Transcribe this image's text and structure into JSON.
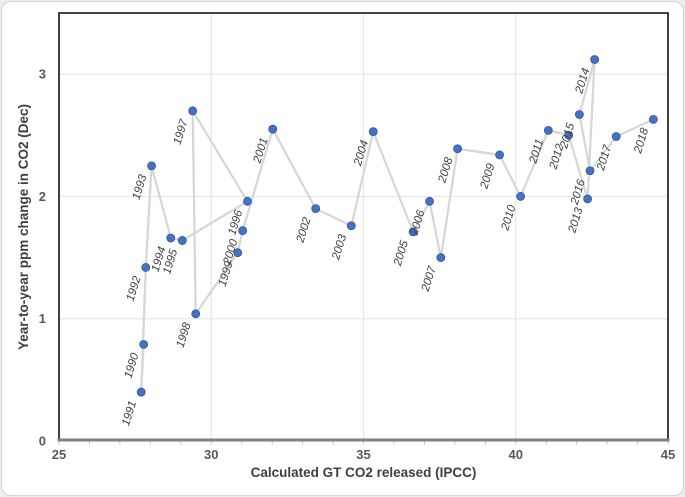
{
  "figure": {
    "page_background": "#eeeeee",
    "background": "#ffffff",
    "border_color": "#d4d4d4"
  },
  "chart_data": {
    "type": "scatter",
    "title": "",
    "xlabel": "Calculated GT CO2 released (IPCC)",
    "ylabel": "Year-to-year ppm change in CO2 (Dec)",
    "xlim": [
      25,
      45
    ],
    "ylim": [
      0,
      3.5
    ],
    "x_ticks": [
      25,
      30,
      35,
      40,
      45
    ],
    "y_ticks": [
      0,
      1,
      2,
      3
    ],
    "x_minor_tick_step": 1,
    "grid": true,
    "legend_position": "none",
    "connected_in_year_order": true,
    "marker_color": "#4472C4",
    "marker_edge_color": "#2F5597",
    "line_color": "#D6D6D6",
    "grid_color": "#E7E7E7",
    "axis_line_color": "#808080",
    "frame_color": "#2b2b2b",
    "tick_mark_color": "#BFBFBF",
    "tick_label_color": "#595959",
    "axis_title_color": "#3F3F3F",
    "point_label_color": "#404040",
    "points": [
      {
        "label": "1990",
        "x": 27.78,
        "y": 0.79
      },
      {
        "label": "1991",
        "x": 27.7,
        "y": 0.4
      },
      {
        "label": "1992",
        "x": 27.85,
        "y": 1.42
      },
      {
        "label": "1993",
        "x": 28.04,
        "y": 2.25
      },
      {
        "label": "1994",
        "x": 28.67,
        "y": 1.66
      },
      {
        "label": "1995",
        "x": 29.05,
        "y": 1.64
      },
      {
        "label": "1996",
        "x": 31.19,
        "y": 1.96
      },
      {
        "label": "1997",
        "x": 29.39,
        "y": 2.7
      },
      {
        "label": "1998",
        "x": 29.49,
        "y": 1.04
      },
      {
        "label": "1999",
        "x": 30.87,
        "y": 1.54
      },
      {
        "label": "2000",
        "x": 31.03,
        "y": 1.72
      },
      {
        "label": "2001",
        "x": 32.02,
        "y": 2.55
      },
      {
        "label": "2002",
        "x": 33.43,
        "y": 1.9
      },
      {
        "label": "2003",
        "x": 34.6,
        "y": 1.76
      },
      {
        "label": "2004",
        "x": 35.32,
        "y": 2.53
      },
      {
        "label": "2005",
        "x": 36.63,
        "y": 1.71
      },
      {
        "label": "2006",
        "x": 37.17,
        "y": 1.96
      },
      {
        "label": "2007",
        "x": 37.54,
        "y": 1.5
      },
      {
        "label": "2008",
        "x": 38.09,
        "y": 2.39
      },
      {
        "label": "2009",
        "x": 39.47,
        "y": 2.34
      },
      {
        "label": "2010",
        "x": 40.16,
        "y": 2.0
      },
      {
        "label": "2011",
        "x": 41.07,
        "y": 2.54
      },
      {
        "label": "2012",
        "x": 41.74,
        "y": 2.5
      },
      {
        "label": "2013",
        "x": 42.36,
        "y": 1.98
      },
      {
        "label": "2014",
        "x": 42.59,
        "y": 3.12
      },
      {
        "label": "2015",
        "x": 42.09,
        "y": 2.67
      },
      {
        "label": "2016",
        "x": 42.44,
        "y": 2.21
      },
      {
        "label": "2017",
        "x": 43.3,
        "y": 2.49
      },
      {
        "label": "2018",
        "x": 44.52,
        "y": 2.63
      }
    ]
  }
}
